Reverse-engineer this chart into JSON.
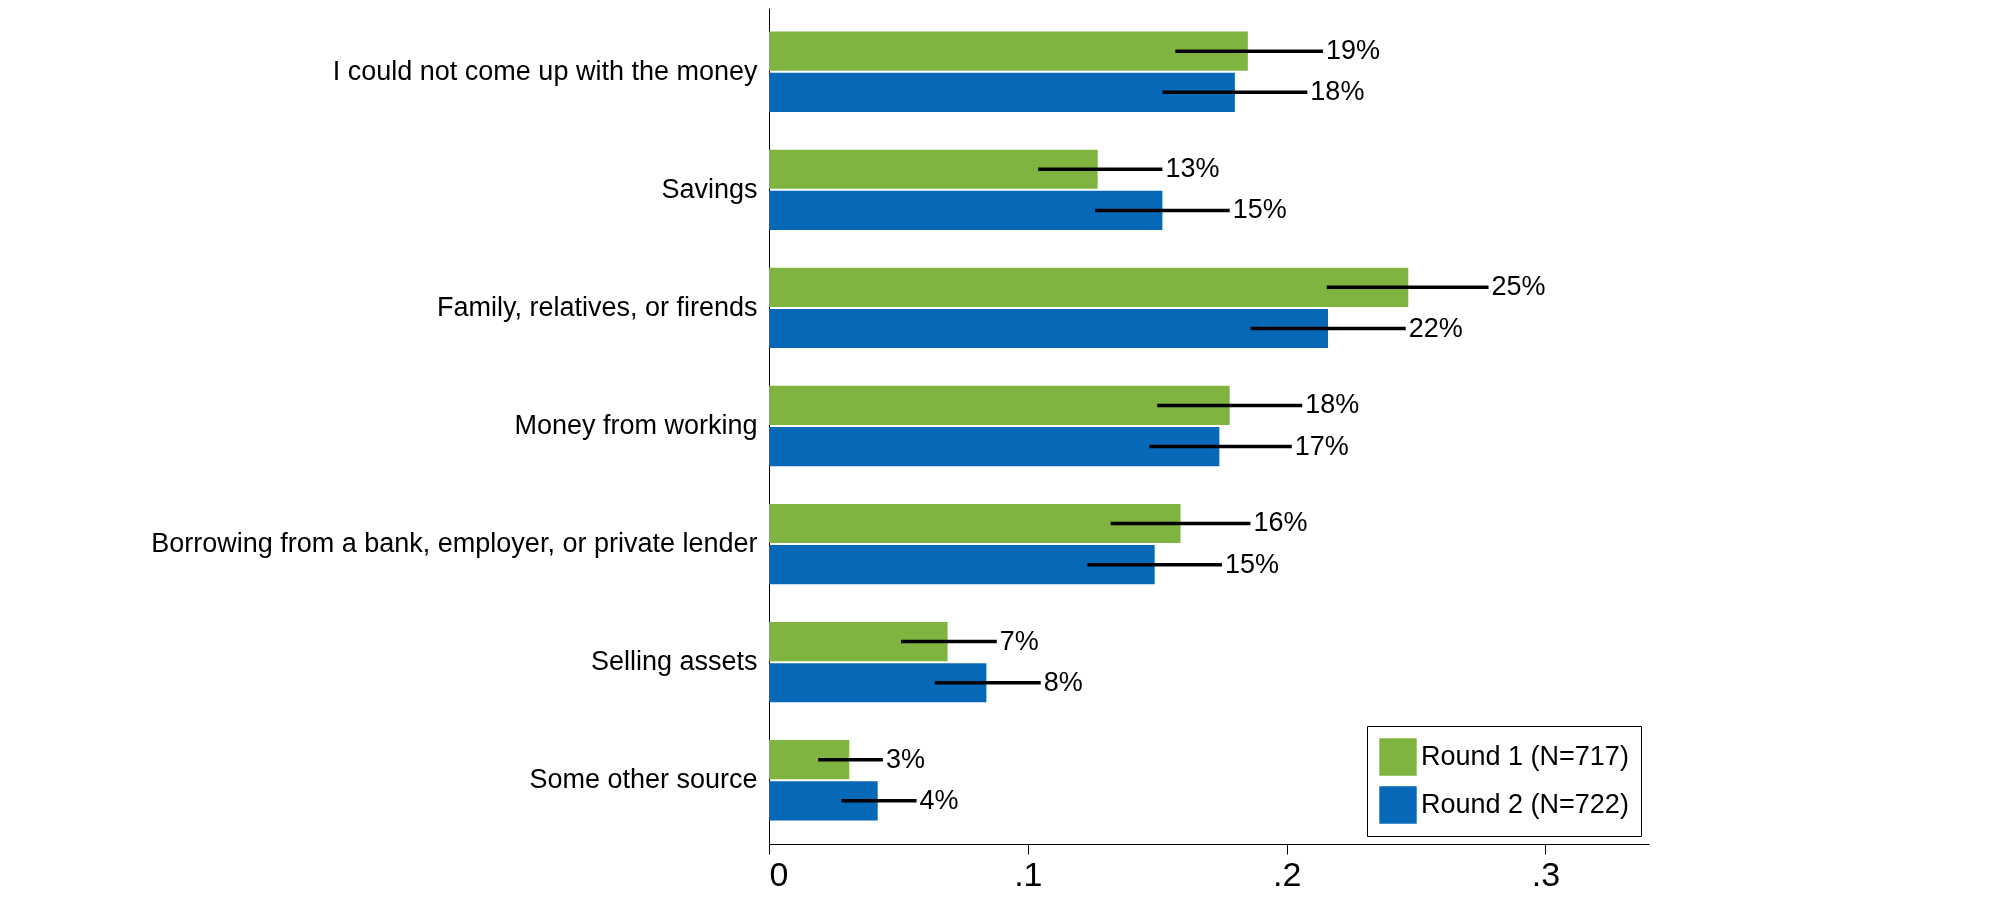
{
  "chart_data": {
    "type": "bar",
    "orientation": "horizontal",
    "categories": [
      "I could not come up with the money",
      "Savings",
      "Family, relatives, or firends",
      "Money from working",
      "Borrowing from a bank, employer, or private lender",
      "Selling assets",
      "Some other source"
    ],
    "series": [
      {
        "name": "Round 1 (N=717)",
        "color": "#80b441",
        "values": [
          0.185,
          0.127,
          0.247,
          0.178,
          0.159,
          0.069,
          0.031
        ],
        "errors": [
          [
            0.157,
            0.214
          ],
          [
            0.104,
            0.152
          ],
          [
            0.2155,
            0.278
          ],
          [
            0.15,
            0.206
          ],
          [
            0.132,
            0.186
          ],
          [
            0.051,
            0.088
          ],
          [
            0.019,
            0.044
          ]
        ],
        "value_labels": [
          "19%",
          "13%",
          "25%",
          "18%",
          "16%",
          "7%",
          "3%"
        ]
      },
      {
        "name": "Round 2 (N=722)",
        "color": "#0868b8",
        "values": [
          0.18,
          0.152,
          0.216,
          0.174,
          0.149,
          0.084,
          0.042
        ],
        "errors": [
          [
            0.152,
            0.208
          ],
          [
            0.126,
            0.178
          ],
          [
            0.186,
            0.246
          ],
          [
            0.147,
            0.202
          ],
          [
            0.123,
            0.175
          ],
          [
            0.064,
            0.105
          ],
          [
            0.028,
            0.057
          ]
        ],
        "value_labels": [
          "18%",
          "15%",
          "22%",
          "17%",
          "15%",
          "8%",
          "4%"
        ]
      }
    ],
    "xlim": [
      0,
      0.34
    ],
    "xticks": [
      {
        "value": 0,
        "label": "0"
      },
      {
        "value": 0.1,
        "label": ".1"
      },
      {
        "value": 0.2,
        "label": ".2"
      },
      {
        "value": 0.3,
        "label": ".3"
      }
    ],
    "grid": false,
    "legend": "bottom right"
  }
}
